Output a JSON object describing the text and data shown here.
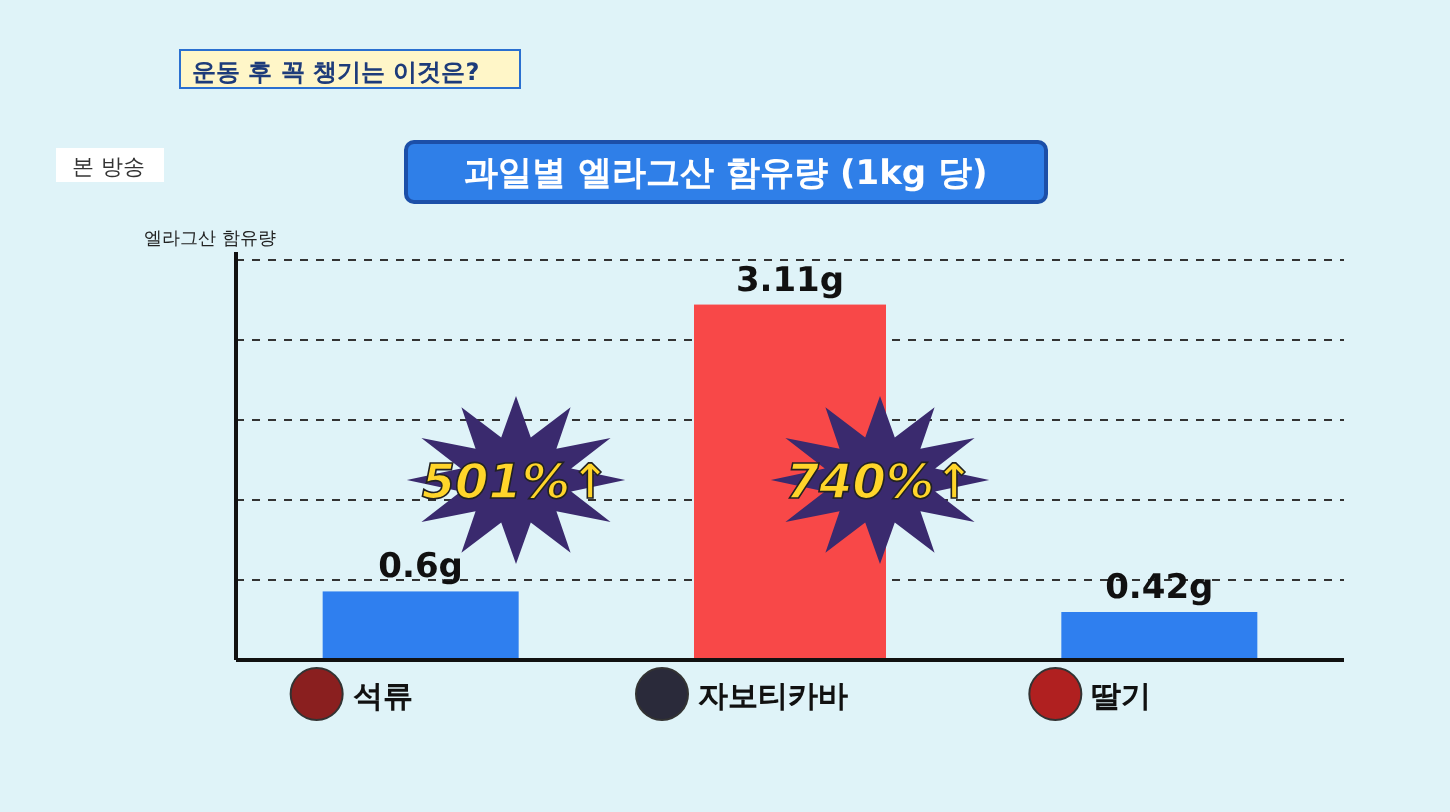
{
  "chart_data": {
    "type": "bar",
    "title": "과일별 엘라그산 함유량 (1kg 당)",
    "ylabel": "엘라그산 함유량",
    "categories": [
      "석류",
      "자보티카바",
      "딸기"
    ],
    "values": [
      0.6,
      3.11,
      0.42
    ],
    "colors": [
      "#2f7fef",
      "#f84848",
      "#2f7fef"
    ],
    "value_labels": [
      "0.6g",
      "3.11g",
      "0.42g"
    ],
    "ylim": [
      0,
      3.5
    ],
    "yticks": [
      {
        "value": 0.7,
        "label": null
      },
      {
        "value": 1.4,
        "label": null
      },
      {
        "value": 2.1,
        "label": null
      },
      {
        "value": 2.8,
        "label": null
      },
      {
        "value": 3.5,
        "label": null
      }
    ],
    "grid": "y",
    "annotations": [
      "운동 후 꼭 챙기는 이것은?",
      "본 방송",
      "501%↑",
      "740%↑"
    ]
  }
}
